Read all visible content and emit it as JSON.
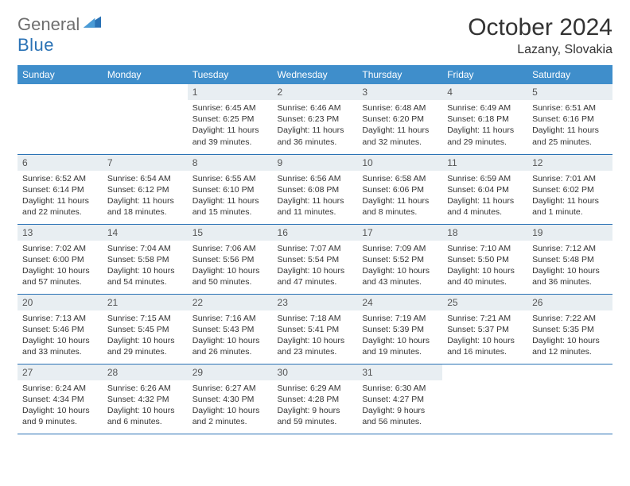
{
  "logo": {
    "line1": "General",
    "line2": "Blue"
  },
  "title": "October 2024",
  "location": "Lazany, Slovakia",
  "colors": {
    "header_bg": "#3f8ecb",
    "header_text": "#ffffff",
    "daynum_bg": "#e8eef2",
    "border": "#2a72b5",
    "logo_gray": "#6e6e6e",
    "logo_blue": "#2a72b5"
  },
  "weekdays": [
    "Sunday",
    "Monday",
    "Tuesday",
    "Wednesday",
    "Thursday",
    "Friday",
    "Saturday"
  ],
  "weeks": [
    [
      {
        "empty": true
      },
      {
        "empty": true
      },
      {
        "n": "1",
        "sr": "6:45 AM",
        "ss": "6:25 PM",
        "dl": "11 hours and 39 minutes."
      },
      {
        "n": "2",
        "sr": "6:46 AM",
        "ss": "6:23 PM",
        "dl": "11 hours and 36 minutes."
      },
      {
        "n": "3",
        "sr": "6:48 AM",
        "ss": "6:20 PM",
        "dl": "11 hours and 32 minutes."
      },
      {
        "n": "4",
        "sr": "6:49 AM",
        "ss": "6:18 PM",
        "dl": "11 hours and 29 minutes."
      },
      {
        "n": "5",
        "sr": "6:51 AM",
        "ss": "6:16 PM",
        "dl": "11 hours and 25 minutes."
      }
    ],
    [
      {
        "n": "6",
        "sr": "6:52 AM",
        "ss": "6:14 PM",
        "dl": "11 hours and 22 minutes."
      },
      {
        "n": "7",
        "sr": "6:54 AM",
        "ss": "6:12 PM",
        "dl": "11 hours and 18 minutes."
      },
      {
        "n": "8",
        "sr": "6:55 AM",
        "ss": "6:10 PM",
        "dl": "11 hours and 15 minutes."
      },
      {
        "n": "9",
        "sr": "6:56 AM",
        "ss": "6:08 PM",
        "dl": "11 hours and 11 minutes."
      },
      {
        "n": "10",
        "sr": "6:58 AM",
        "ss": "6:06 PM",
        "dl": "11 hours and 8 minutes."
      },
      {
        "n": "11",
        "sr": "6:59 AM",
        "ss": "6:04 PM",
        "dl": "11 hours and 4 minutes."
      },
      {
        "n": "12",
        "sr": "7:01 AM",
        "ss": "6:02 PM",
        "dl": "11 hours and 1 minute."
      }
    ],
    [
      {
        "n": "13",
        "sr": "7:02 AM",
        "ss": "6:00 PM",
        "dl": "10 hours and 57 minutes."
      },
      {
        "n": "14",
        "sr": "7:04 AM",
        "ss": "5:58 PM",
        "dl": "10 hours and 54 minutes."
      },
      {
        "n": "15",
        "sr": "7:06 AM",
        "ss": "5:56 PM",
        "dl": "10 hours and 50 minutes."
      },
      {
        "n": "16",
        "sr": "7:07 AM",
        "ss": "5:54 PM",
        "dl": "10 hours and 47 minutes."
      },
      {
        "n": "17",
        "sr": "7:09 AM",
        "ss": "5:52 PM",
        "dl": "10 hours and 43 minutes."
      },
      {
        "n": "18",
        "sr": "7:10 AM",
        "ss": "5:50 PM",
        "dl": "10 hours and 40 minutes."
      },
      {
        "n": "19",
        "sr": "7:12 AM",
        "ss": "5:48 PM",
        "dl": "10 hours and 36 minutes."
      }
    ],
    [
      {
        "n": "20",
        "sr": "7:13 AM",
        "ss": "5:46 PM",
        "dl": "10 hours and 33 minutes."
      },
      {
        "n": "21",
        "sr": "7:15 AM",
        "ss": "5:45 PM",
        "dl": "10 hours and 29 minutes."
      },
      {
        "n": "22",
        "sr": "7:16 AM",
        "ss": "5:43 PM",
        "dl": "10 hours and 26 minutes."
      },
      {
        "n": "23",
        "sr": "7:18 AM",
        "ss": "5:41 PM",
        "dl": "10 hours and 23 minutes."
      },
      {
        "n": "24",
        "sr": "7:19 AM",
        "ss": "5:39 PM",
        "dl": "10 hours and 19 minutes."
      },
      {
        "n": "25",
        "sr": "7:21 AM",
        "ss": "5:37 PM",
        "dl": "10 hours and 16 minutes."
      },
      {
        "n": "26",
        "sr": "7:22 AM",
        "ss": "5:35 PM",
        "dl": "10 hours and 12 minutes."
      }
    ],
    [
      {
        "n": "27",
        "sr": "6:24 AM",
        "ss": "4:34 PM",
        "dl": "10 hours and 9 minutes."
      },
      {
        "n": "28",
        "sr": "6:26 AM",
        "ss": "4:32 PM",
        "dl": "10 hours and 6 minutes."
      },
      {
        "n": "29",
        "sr": "6:27 AM",
        "ss": "4:30 PM",
        "dl": "10 hours and 2 minutes."
      },
      {
        "n": "30",
        "sr": "6:29 AM",
        "ss": "4:28 PM",
        "dl": "9 hours and 59 minutes."
      },
      {
        "n": "31",
        "sr": "6:30 AM",
        "ss": "4:27 PM",
        "dl": "9 hours and 56 minutes."
      },
      {
        "empty": true
      },
      {
        "empty": true
      }
    ]
  ],
  "labels": {
    "sunrise": "Sunrise:",
    "sunset": "Sunset:",
    "daylight": "Daylight:"
  }
}
